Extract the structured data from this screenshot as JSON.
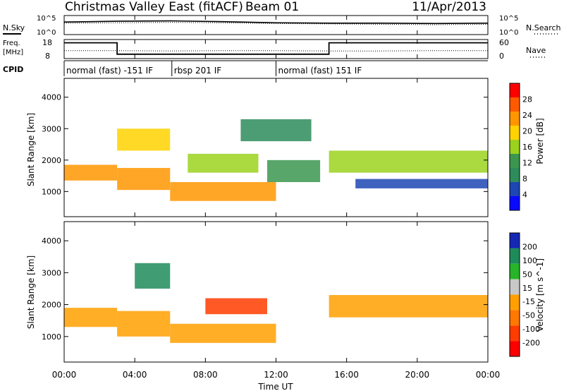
{
  "header": {
    "title": "Christmas Valley East (fitACF)",
    "beam": "Beam 01",
    "date": "11/Apr/2013"
  },
  "housekeeping": {
    "nsky_label": "N.Sky",
    "nsearch_label": "N.Search",
    "noise_ticks_left": [
      "10^5",
      "10^0"
    ],
    "noise_ticks_right": [
      "10^5",
      "10^0"
    ],
    "freq_label_1": "Freq.",
    "freq_label_2": "[MHz]",
    "freq_ticks": [
      "18",
      "8"
    ],
    "nave_label": "Nave",
    "nave_ticks": [
      "60",
      "0"
    ],
    "cpid_label": "CPID",
    "cpid_segments": [
      {
        "label": "normal (fast) -151 IF",
        "start_hour": 0,
        "end_hour": 6.1
      },
      {
        "label": "rbsp 201 IF",
        "start_hour": 6.1,
        "end_hour": 12.0
      },
      {
        "label": "normal (fast) 151 IF",
        "start_hour": 12.0,
        "end_hour": 24
      }
    ]
  },
  "colorbars": {
    "power": {
      "label": "Power [dB]",
      "ticks": [
        "28",
        "24",
        "20",
        "16",
        "12",
        "8",
        "4"
      ],
      "colors": [
        "#ff0000",
        "#ff5a00",
        "#ff9600",
        "#ffd200",
        "#9bd21e",
        "#3c9650",
        "#2d8c5a",
        "#1e46b4",
        "#0a0aff"
      ]
    },
    "velocity": {
      "label": "Velocity [m s^-1]",
      "ticks": [
        "200",
        "100",
        "50",
        "15",
        "-15",
        "-50",
        "-100",
        "-200"
      ],
      "colors": [
        "#1428b4",
        "#1e8c5a",
        "#28b428",
        "#c8c8c8",
        "#ffa000",
        "#ff7800",
        "#ff3c00",
        "#ff0000"
      ]
    }
  },
  "chart_data": [
    {
      "type": "line",
      "title": "N.Sky / N.Search",
      "ylim_ticks": [
        "10^0",
        "10^5"
      ],
      "series": [
        {
          "name": "N.Sky",
          "x": [
            0,
            3,
            6,
            9,
            12,
            15,
            18,
            21,
            24
          ],
          "values": [
            3.3,
            3.5,
            3.6,
            3.4,
            3.1,
            3.0,
            3.0,
            2.9,
            3.0
          ]
        },
        {
          "name": "N.Search",
          "x": [
            0,
            3,
            6,
            9,
            12,
            15,
            18,
            21,
            24
          ],
          "values": [
            3.0,
            3.1,
            3.2,
            3.1,
            2.9,
            2.8,
            2.7,
            2.6,
            2.7
          ]
        }
      ]
    },
    {
      "type": "line",
      "title": "Freq. / Nave",
      "series": [
        {
          "name": "Freq.",
          "unit": "MHz",
          "x": [
            0,
            3.0,
            3.0,
            15.0,
            15.0,
            24
          ],
          "values": [
            16.3,
            16.3,
            10.3,
            10.3,
            16.3,
            16.3
          ]
        },
        {
          "name": "Nave",
          "x": [
            0,
            3,
            6,
            9,
            12,
            15,
            18,
            21,
            24
          ],
          "values": [
            25,
            25,
            24,
            25,
            25,
            24,
            24,
            25,
            25
          ]
        }
      ],
      "ylim": [
        8,
        18
      ]
    },
    {
      "type": "heatmap",
      "title": "Power",
      "xlabel": "Time UT",
      "ylabel": "Slant Range [km]",
      "x_ticks": [
        "00:00",
        "04:00",
        "08:00",
        "12:00",
        "16:00",
        "20:00",
        "00:00"
      ],
      "xlim_hours": [
        0,
        24
      ],
      "ylim": [
        200,
        4600
      ],
      "y_ticks": [
        1000,
        2000,
        3000,
        4000
      ],
      "colorbar_range_dB": [
        0,
        30
      ],
      "echo_regions": [
        {
          "t0": 0.0,
          "t1": 3.0,
          "r_start": 1350,
          "r_end": 1850,
          "value": 22
        },
        {
          "t0": 3.0,
          "t1": 6.0,
          "r_start": 1050,
          "r_end": 1750,
          "value": 24
        },
        {
          "t0": 3.0,
          "t1": 6.0,
          "r_start": 2300,
          "r_end": 3000,
          "value": 18
        },
        {
          "t0": 6.0,
          "t1": 12.0,
          "r_start": 700,
          "r_end": 1300,
          "value": 22
        },
        {
          "t0": 7.0,
          "t1": 11.0,
          "r_start": 1600,
          "r_end": 2200,
          "value": 14
        },
        {
          "t0": 11.5,
          "t1": 14.5,
          "r_start": 1300,
          "r_end": 2000,
          "value": 10
        },
        {
          "t0": 10.0,
          "t1": 14.0,
          "r_start": 2600,
          "r_end": 3300,
          "value": 8
        },
        {
          "t0": 15.0,
          "t1": 24.0,
          "r_start": 1600,
          "r_end": 2300,
          "value": 14
        },
        {
          "t0": 16.5,
          "t1": 24.0,
          "r_start": 1100,
          "r_end": 1400,
          "value": 5
        }
      ]
    },
    {
      "type": "heatmap",
      "title": "Velocity",
      "xlabel": "Time UT",
      "ylabel": "Slant Range [km]",
      "x_ticks": [
        "00:00",
        "04:00",
        "08:00",
        "12:00",
        "16:00",
        "20:00",
        "00:00"
      ],
      "xlim_hours": [
        0,
        24
      ],
      "ylim": [
        200,
        4600
      ],
      "y_ticks": [
        1000,
        2000,
        3000,
        4000
      ],
      "colorbar_range": [
        -250,
        250
      ],
      "echo_regions": [
        {
          "t0": 0.0,
          "t1": 3.0,
          "r_start": 1300,
          "r_end": 1900,
          "value": 0
        },
        {
          "t0": 3.0,
          "t1": 6.0,
          "r_start": 1000,
          "r_end": 1800,
          "value": 0
        },
        {
          "t0": 4.0,
          "t1": 6.0,
          "r_start": 2500,
          "r_end": 3300,
          "value": 180
        },
        {
          "t0": 6.0,
          "t1": 12.0,
          "r_start": 800,
          "r_end": 1400,
          "value": 0
        },
        {
          "t0": 8.0,
          "t1": 11.5,
          "r_start": 1700,
          "r_end": 2200,
          "value": -90
        },
        {
          "t0": 15.0,
          "t1": 24.0,
          "r_start": 1600,
          "r_end": 2300,
          "value": 0
        }
      ]
    }
  ]
}
